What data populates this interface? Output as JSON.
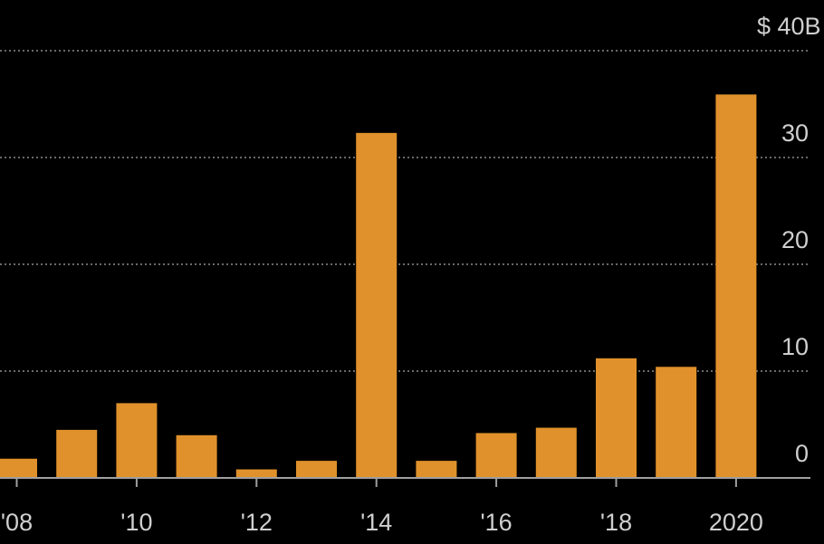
{
  "colors": {
    "background": "#000000",
    "bar": "#E0912B",
    "grid": "#8c8c8c",
    "text": "#cfcfcf",
    "baseline": "#a0a0a0"
  },
  "chart_data": {
    "type": "bar",
    "title": "",
    "xlabel": "",
    "ylabel": "",
    "categories": [
      "2008",
      "2009",
      "2010",
      "2011",
      "2012",
      "2013",
      "2014",
      "2015",
      "2016",
      "2017",
      "2018",
      "2019",
      "2020"
    ],
    "values": [
      1.8,
      4.5,
      7.0,
      4.0,
      0.8,
      1.6,
      32.3,
      1.6,
      4.2,
      4.7,
      11.2,
      10.4,
      35.9
    ],
    "x_tick_labels": [
      {
        "category": "2008",
        "label": "'08"
      },
      {
        "category": "2010",
        "label": "'10"
      },
      {
        "category": "2012",
        "label": "'12"
      },
      {
        "category": "2014",
        "label": "'14"
      },
      {
        "category": "2016",
        "label": "'16"
      },
      {
        "category": "2018",
        "label": "'18"
      },
      {
        "category": "2020",
        "label": "2020"
      }
    ],
    "y_ticks": [
      0,
      10,
      20,
      30,
      40
    ],
    "y_tick_labels": [
      "0",
      "10",
      "20",
      "30",
      "$ 40B"
    ],
    "ylim": [
      0,
      40
    ],
    "grid": true,
    "grid_style": "dotted",
    "y_axis_side": "right"
  }
}
